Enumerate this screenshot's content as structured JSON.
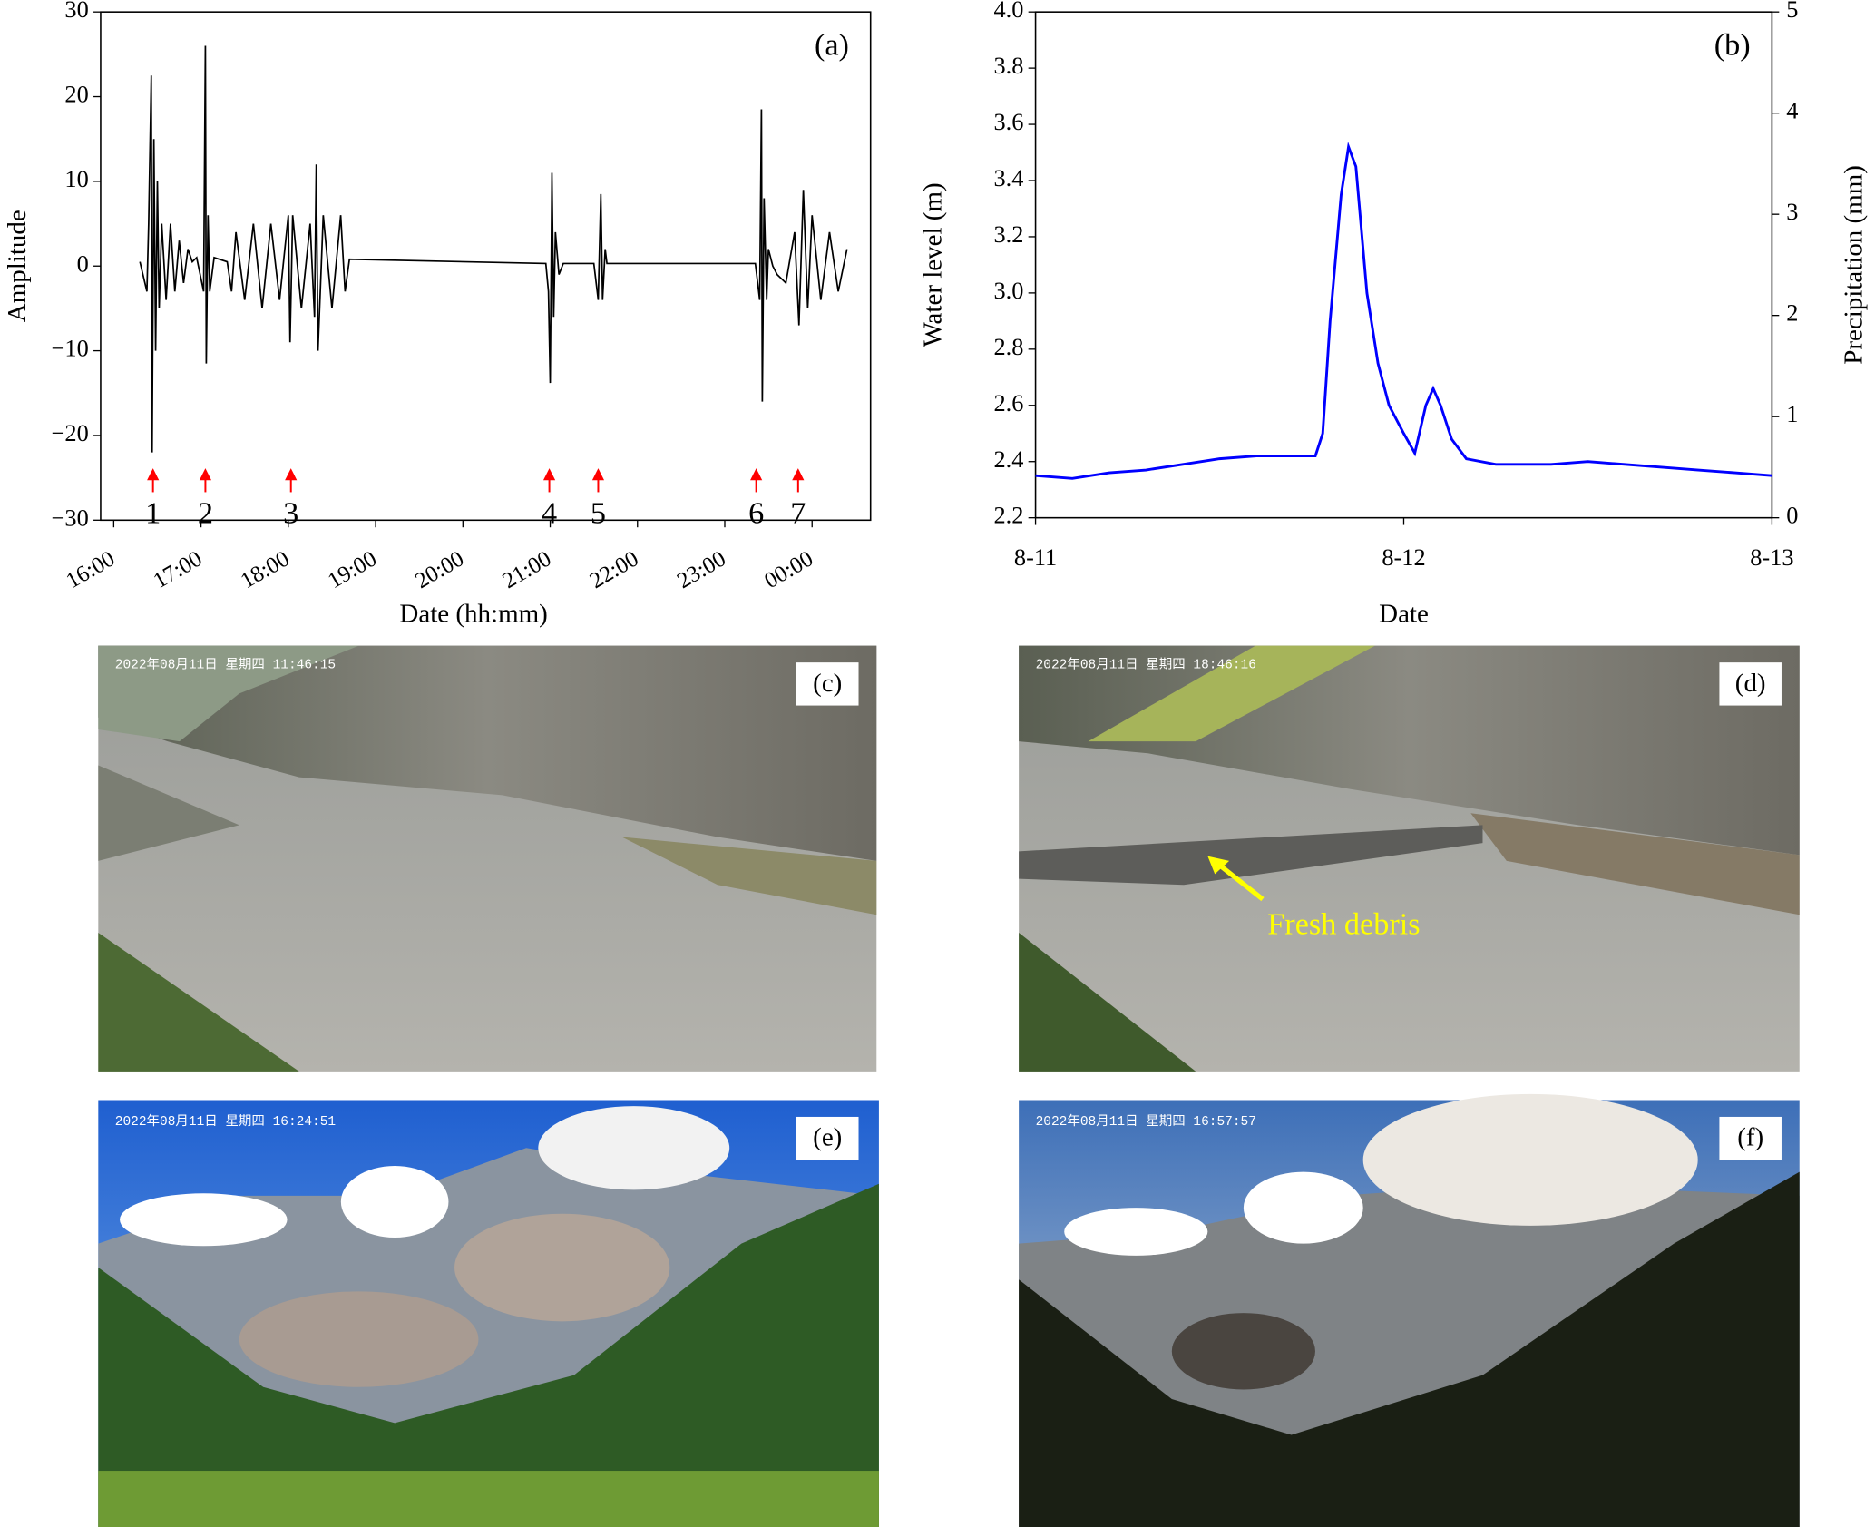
{
  "chart_data": [
    {
      "type": "line",
      "panel_label": "(a)",
      "x_label": "Date (hh:mm)",
      "y_label": "Amplitude",
      "color": "#000000",
      "xlim": [
        15.85,
        24.67
      ],
      "ylim": [
        -30,
        30
      ],
      "xticks": [
        {
          "value": 16,
          "label": "16:00"
        },
        {
          "value": 17,
          "label": "17:00"
        },
        {
          "value": 18,
          "label": "18:00"
        },
        {
          "value": 19,
          "label": "19:00"
        },
        {
          "value": 20,
          "label": "20:00"
        },
        {
          "value": 21,
          "label": "21:00"
        },
        {
          "value": 22,
          "label": "22:00"
        },
        {
          "value": 23,
          "label": "23:00"
        },
        {
          "value": 24,
          "label": "00:00"
        }
      ],
      "yticks": [
        {
          "value": -30,
          "label": "−30"
        },
        {
          "value": -20,
          "label": "−20"
        },
        {
          "value": -10,
          "label": "−10"
        },
        0,
        10,
        20,
        30
      ],
      "x": [
        16.3,
        16.38,
        16.4,
        16.43,
        16.44,
        16.46,
        16.48,
        16.5,
        16.52,
        16.55,
        16.6,
        16.65,
        16.7,
        16.75,
        16.8,
        16.85,
        16.9,
        16.95,
        17.03,
        17.05,
        17.06,
        17.08,
        17.1,
        17.15,
        17.3,
        17.35,
        17.4,
        17.5,
        17.6,
        17.7,
        17.8,
        17.9,
        18.0,
        18.02,
        18.05,
        18.15,
        18.25,
        18.3,
        18.32,
        18.34,
        18.4,
        18.5,
        18.6,
        18.65,
        18.7,
        20.95,
        20.98,
        21.0,
        21.02,
        21.04,
        21.06,
        21.1,
        21.15,
        21.5,
        21.55,
        21.58,
        21.6,
        21.63,
        21.65,
        23.35,
        23.4,
        23.42,
        23.43,
        23.45,
        23.48,
        23.5,
        23.55,
        23.6,
        23.7,
        23.8,
        23.85,
        23.9,
        23.95,
        24.0,
        24.1,
        24.2,
        24.3,
        24.4
      ],
      "values": [
        0.5,
        -3,
        5,
        22.5,
        -22,
        15,
        -10,
        10,
        -5,
        5,
        -4,
        5,
        -3,
        3,
        -2,
        2,
        0.5,
        1,
        -3,
        26,
        -11.5,
        6,
        -3,
        1,
        0.5,
        -3,
        4,
        -4,
        5,
        -5,
        5,
        -4,
        6,
        -9,
        6,
        -5,
        5,
        -6,
        12,
        -10,
        6,
        -5,
        6,
        -3,
        0.8,
        0.3,
        -3,
        -13.8,
        11,
        -6,
        4,
        -1,
        0.3,
        0.3,
        -4,
        8.5,
        -4,
        2,
        0.3,
        0.3,
        -4,
        18.5,
        -16,
        8,
        -4,
        2,
        0,
        -1,
        -2,
        4,
        -7,
        9,
        -5,
        6,
        -4,
        4,
        -3,
        2
      ],
      "events": [
        {
          "x": 16.45,
          "label": "1"
        },
        {
          "x": 17.05,
          "label": "2"
        },
        {
          "x": 18.03,
          "label": "3"
        },
        {
          "x": 20.99,
          "label": "4"
        },
        {
          "x": 21.55,
          "label": "5"
        },
        {
          "x": 23.36,
          "label": "6"
        },
        {
          "x": 23.84,
          "label": "7"
        }
      ],
      "event_color": "#ff0000",
      "event_y": -25
    },
    {
      "type": "line",
      "panel_label": "(b)",
      "x_label": "Date",
      "y_label": "Water level (m)",
      "y2_label": "Precipitation (mm)",
      "color": "#0000ff",
      "xlim": [
        0,
        2
      ],
      "ylim": [
        2.2,
        4.0
      ],
      "y2lim": [
        0,
        5
      ],
      "xticks": [
        {
          "value": 0,
          "label": "8-11"
        },
        {
          "value": 1,
          "label": "8-12"
        },
        {
          "value": 2,
          "label": "8-13"
        }
      ],
      "yticks": [
        2.2,
        2.4,
        2.6,
        2.8,
        {
          "value": 3,
          "label": "3.0"
        },
        3.2,
        3.4,
        3.6,
        3.8,
        {
          "value": 4,
          "label": "4.0"
        }
      ],
      "y2ticks": [
        0,
        1,
        2,
        3,
        4,
        5
      ],
      "x": [
        0,
        0.1,
        0.2,
        0.3,
        0.4,
        0.5,
        0.6,
        0.7,
        0.76,
        0.78,
        0.8,
        0.83,
        0.85,
        0.87,
        0.9,
        0.93,
        0.96,
        1.0,
        1.03,
        1.06,
        1.08,
        1.1,
        1.13,
        1.17,
        1.25,
        1.4,
        1.5,
        1.6,
        1.7,
        1.8,
        1.9,
        2.0
      ],
      "values": [
        2.35,
        2.34,
        2.36,
        2.37,
        2.39,
        2.41,
        2.42,
        2.42,
        2.42,
        2.5,
        2.9,
        3.35,
        3.52,
        3.45,
        3.0,
        2.75,
        2.6,
        2.5,
        2.43,
        2.6,
        2.66,
        2.6,
        2.48,
        2.41,
        2.39,
        2.39,
        2.4,
        2.39,
        2.38,
        2.37,
        2.36,
        2.35
      ]
    }
  ],
  "photos": [
    {
      "label": "(c)",
      "timestamp": "2022年08月11日 星期四 11:46:15"
    },
    {
      "label": "(d)",
      "timestamp": "2022年08月11日 星期四 18:46:16",
      "annotation": "Fresh debris"
    },
    {
      "label": "(e)",
      "timestamp": "2022年08月11日 星期四 16:24:51"
    },
    {
      "label": "(f)",
      "timestamp": "2022年08月11日 星期四 16:57:57"
    }
  ]
}
